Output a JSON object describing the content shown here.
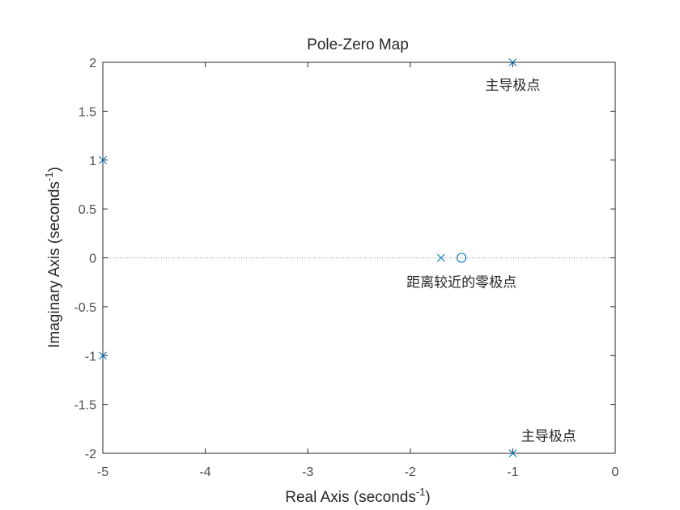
{
  "chart_data": {
    "type": "scatter",
    "title": "Pole-Zero Map",
    "xlabel": "Real Axis (seconds",
    "xlabel_sup": "-1",
    "xlabel_end": ")",
    "ylabel": "Imaginary Axis (seconds",
    "ylabel_sup": "-1",
    "ylabel_end": ")",
    "xlim": [
      -5,
      0
    ],
    "ylim": [
      -2,
      2
    ],
    "x_ticks": [
      -5,
      -4,
      -3,
      -2,
      -1,
      0
    ],
    "x_tick_labels": [
      "-5",
      "-4",
      "-3",
      "-2",
      "-1",
      "0"
    ],
    "y_ticks": [
      2,
      1.5,
      1,
      0.5,
      0,
      -0.5,
      -1,
      -1.5,
      -2
    ],
    "y_tick_labels": [
      "2",
      "1.5",
      "1",
      "0.5",
      "0",
      "-0.5",
      "-1",
      "-1.5",
      "-2"
    ],
    "grid": false,
    "zero_line": "dotted",
    "marker_color": "#0072bd",
    "poles": [
      {
        "x": -1,
        "y": 2
      },
      {
        "x": -1,
        "y": -2
      },
      {
        "x": -5,
        "y": 1
      },
      {
        "x": -5,
        "y": -1
      },
      {
        "x": -1.7,
        "y": 0
      }
    ],
    "zeros": [
      {
        "x": -1.5,
        "y": 0
      }
    ],
    "annotations": [
      {
        "text": "主导极点",
        "x": -1,
        "y": 1.77
      },
      {
        "text": "距离较近的零极点",
        "x": -1.5,
        "y": -0.25
      },
      {
        "text": "主导极点",
        "x": -0.65,
        "y": -1.82
      }
    ]
  }
}
